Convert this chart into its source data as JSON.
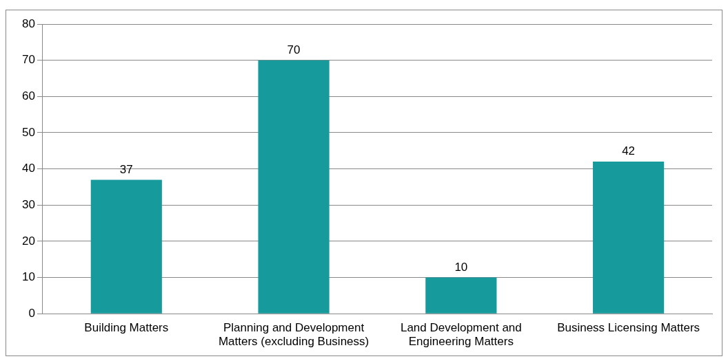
{
  "chart_data": {
    "type": "bar",
    "categories": [
      "Building Matters",
      "Planning and Development Matters (excluding Business)",
      "Land Development and Engineering Matters",
      "Business Licensing Matters"
    ],
    "values": [
      37,
      70,
      10,
      42
    ],
    "color": "#179a9c",
    "ylim": [
      0,
      80
    ],
    "yticks": [
      0,
      10,
      20,
      30,
      40,
      50,
      60,
      70,
      80
    ],
    "grid": "y",
    "data_labels": true
  }
}
